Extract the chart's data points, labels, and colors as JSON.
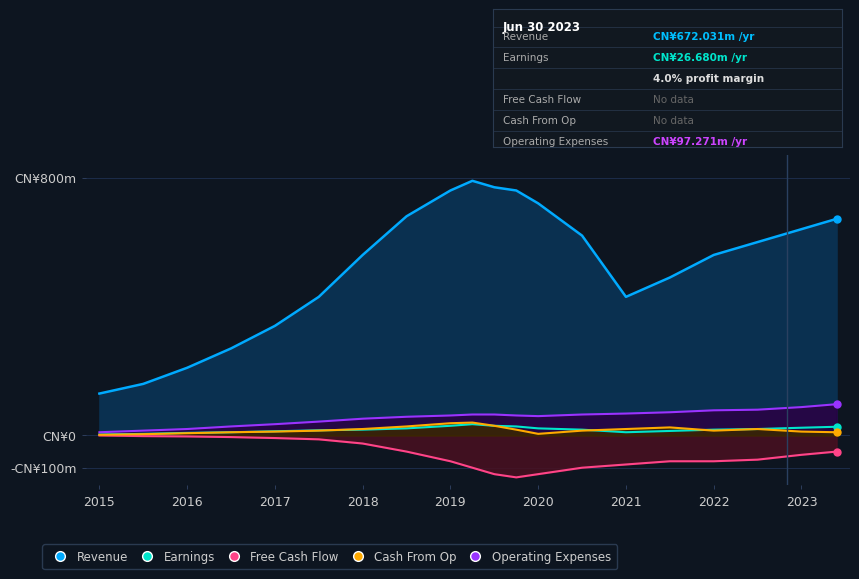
{
  "bg_color": "#0d1520",
  "plot_bg_color": "#0d1520",
  "title_box": {
    "date": "Jun 30 2023",
    "rows": [
      {
        "label": "Revenue",
        "value": "CN¥672.031m /yr",
        "value_color": "#00bfff"
      },
      {
        "label": "Earnings",
        "value": "CN¥26.680m /yr",
        "value_color": "#00e5cc"
      },
      {
        "label": "",
        "value": "4.0% profit margin",
        "value_color": "#dddddd"
      },
      {
        "label": "Free Cash Flow",
        "value": "No data",
        "value_color": "#666666"
      },
      {
        "label": "Cash From Op",
        "value": "No data",
        "value_color": "#666666"
      },
      {
        "label": "Operating Expenses",
        "value": "CN¥97.271m /yr",
        "value_color": "#cc44ff"
      }
    ]
  },
  "years": [
    2015.0,
    2015.5,
    2016.0,
    2016.5,
    2017.0,
    2017.5,
    2018.0,
    2018.5,
    2019.0,
    2019.25,
    2019.5,
    2019.75,
    2020.0,
    2020.5,
    2021.0,
    2021.5,
    2022.0,
    2022.5,
    2023.0,
    2023.4
  ],
  "revenue": [
    130,
    160,
    210,
    270,
    340,
    430,
    560,
    680,
    760,
    790,
    770,
    760,
    720,
    620,
    430,
    490,
    560,
    600,
    640,
    672
  ],
  "earnings": [
    3,
    5,
    8,
    10,
    13,
    16,
    18,
    22,
    30,
    35,
    30,
    28,
    22,
    18,
    10,
    14,
    18,
    20,
    24,
    27
  ],
  "free_cash_flow": [
    0,
    -2,
    -3,
    -5,
    -8,
    -12,
    -25,
    -50,
    -80,
    -100,
    -120,
    -130,
    -120,
    -100,
    -90,
    -80,
    -80,
    -75,
    -60,
    -50
  ],
  "cash_from_op": [
    2,
    4,
    7,
    10,
    12,
    15,
    20,
    28,
    38,
    40,
    30,
    18,
    5,
    15,
    20,
    25,
    15,
    20,
    12,
    10
  ],
  "operating_expenses": [
    10,
    15,
    20,
    28,
    35,
    43,
    52,
    58,
    62,
    65,
    65,
    62,
    60,
    65,
    68,
    72,
    78,
    80,
    88,
    97
  ],
  "ylim": [
    -155,
    870
  ],
  "yticks_vals": [
    -100,
    0,
    800
  ],
  "ytick_labels": [
    "-CN¥100m",
    "CN¥0",
    "CN¥800m"
  ],
  "xticks": [
    2015,
    2016,
    2017,
    2018,
    2019,
    2020,
    2021,
    2022,
    2023
  ],
  "colors": {
    "revenue": "#00aaff",
    "revenue_fill": "#0a3050",
    "earnings": "#00e5cc",
    "earnings_fill": "#003333",
    "free_cash_flow": "#ff4488",
    "free_cash_flow_fill": "#4a1020",
    "cash_from_op": "#ffaa00",
    "cash_from_op_fill": "#3a2800",
    "operating_expenses": "#9933ff",
    "operating_expenses_fill": "#2a0044"
  },
  "grid_color": "#1e3050",
  "legend": [
    {
      "label": "Revenue",
      "color": "#00aaff"
    },
    {
      "label": "Earnings",
      "color": "#00e5cc"
    },
    {
      "label": "Free Cash Flow",
      "color": "#ff4488"
    },
    {
      "label": "Cash From Op",
      "color": "#ffaa00"
    },
    {
      "label": "Operating Expenses",
      "color": "#9933ff"
    }
  ],
  "vline_x": 2022.83
}
